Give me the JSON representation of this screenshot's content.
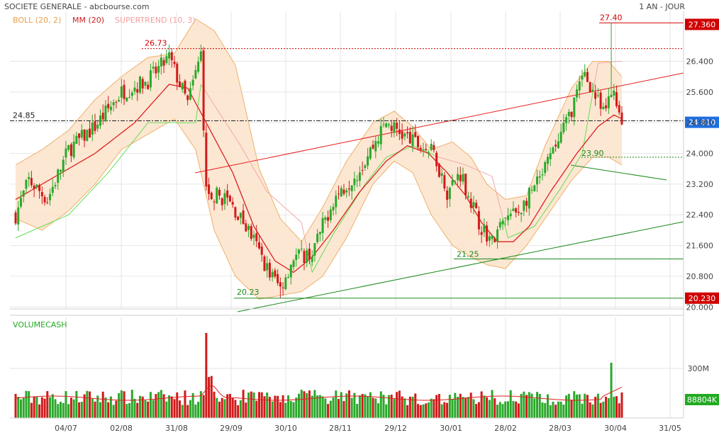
{
  "header": {
    "title": "SOCIETE GENERALE - abcbourse.com",
    "period": "1 AN - JOUR"
  },
  "legend": [
    {
      "label": "BOLL (20, 2)",
      "color": "#e8a04a"
    },
    {
      "label": "MM (20)",
      "color": "#cc2222"
    },
    {
      "label": "SUPERTREND (10, 3)",
      "color": "#f0a0a0"
    }
  ],
  "volume_label": "VOLUMECASH",
  "chart_data": {
    "type": "candlestick",
    "x_ticks": [
      "04/07",
      "02/08",
      "31/08",
      "29/09",
      "30/10",
      "28/11",
      "29/12",
      "30/01",
      "28/02",
      "28/03",
      "30/04",
      "31/05"
    ],
    "price_ticks": [
      "26.400",
      "25.600",
      "24.800",
      "24.000",
      "23.200",
      "22.400",
      "21.600",
      "20.800",
      "20.000"
    ],
    "price_range": [
      19.95,
      27.7
    ],
    "volume_ticks": [
      "300M"
    ],
    "price_badges": [
      {
        "value": "27.360",
        "price": 27.36,
        "color": "#d00000"
      },
      {
        "value": "24.810",
        "price": 24.81,
        "color": "#1f6fe0"
      },
      {
        "value": "20.230",
        "price": 20.23,
        "color": "#d00000"
      }
    ],
    "volume_badge": {
      "value": "88804K",
      "color": "#22aa22"
    },
    "annotations": [
      {
        "text": "27.40",
        "price": 27.4,
        "color": "#d00000"
      },
      {
        "text": "26.73",
        "price": 26.73,
        "color": "#d00000"
      },
      {
        "text": "24.85",
        "price": 24.85,
        "color": "#222"
      },
      {
        "text": "23.90",
        "price": 23.9,
        "color": "#1a8a1a"
      },
      {
        "text": "21.25",
        "price": 21.25,
        "color": "#1a8a1a"
      },
      {
        "text": "20.23",
        "price": 20.23,
        "color": "#1a8a1a"
      }
    ],
    "price_anchors": [
      [
        0,
        22.4
      ],
      [
        5,
        23.3
      ],
      [
        12,
        22.8
      ],
      [
        20,
        24.1
      ],
      [
        30,
        24.7
      ],
      [
        40,
        25.6
      ],
      [
        50,
        25.9
      ],
      [
        58,
        26.5
      ],
      [
        65,
        25.3
      ],
      [
        70,
        26.6
      ],
      [
        72,
        23.0
      ],
      [
        80,
        22.8
      ],
      [
        88,
        22.0
      ],
      [
        95,
        21.0
      ],
      [
        100,
        20.5
      ],
      [
        105,
        21.3
      ],
      [
        112,
        21.4
      ],
      [
        120,
        22.8
      ],
      [
        130,
        23.6
      ],
      [
        140,
        24.8
      ],
      [
        150,
        24.3
      ],
      [
        158,
        24.0
      ],
      [
        163,
        23.0
      ],
      [
        168,
        23.5
      ],
      [
        175,
        22.2
      ],
      [
        180,
        21.7
      ],
      [
        185,
        22.3
      ],
      [
        190,
        22.5
      ],
      [
        198,
        23.3
      ],
      [
        208,
        24.8
      ],
      [
        215,
        26.1
      ],
      [
        222,
        25.0
      ],
      [
        226,
        25.7
      ],
      [
        229,
        24.8
      ]
    ],
    "bollinger_anchors": [
      [
        0,
        23.7,
        22.3
      ],
      [
        10,
        24.1,
        22.0
      ],
      [
        20,
        24.6,
        22.5
      ],
      [
        30,
        25.4,
        23.2
      ],
      [
        40,
        26.0,
        24.1
      ],
      [
        50,
        26.5,
        24.5
      ],
      [
        60,
        26.6,
        24.9
      ],
      [
        68,
        27.5,
        24.1
      ],
      [
        75,
        27.2,
        22.0
      ],
      [
        83,
        26.3,
        20.8
      ],
      [
        92,
        23.6,
        20.2
      ],
      [
        100,
        22.3,
        20.3
      ],
      [
        108,
        21.7,
        20.4
      ],
      [
        116,
        22.6,
        20.8
      ],
      [
        125,
        23.8,
        21.8
      ],
      [
        135,
        24.8,
        23.2
      ],
      [
        143,
        25.1,
        23.8
      ],
      [
        150,
        24.7,
        23.5
      ],
      [
        157,
        24.1,
        22.4
      ],
      [
        165,
        24.3,
        21.6
      ],
      [
        172,
        23.9,
        21.3
      ],
      [
        178,
        23.2,
        21.1
      ],
      [
        185,
        22.8,
        21.0
      ],
      [
        193,
        22.9,
        21.6
      ],
      [
        200,
        24.2,
        22.3
      ],
      [
        210,
        25.7,
        23.3
      ],
      [
        218,
        26.4,
        23.9
      ],
      [
        224,
        26.4,
        23.9
      ],
      [
        229,
        26.0,
        23.7
      ]
    ],
    "ma_anchors": [
      [
        0,
        22.8
      ],
      [
        15,
        23.4
      ],
      [
        30,
        24.0
      ],
      [
        45,
        24.8
      ],
      [
        58,
        25.8
      ],
      [
        65,
        25.7
      ],
      [
        72,
        24.8
      ],
      [
        82,
        23.5
      ],
      [
        90,
        22.1
      ],
      [
        98,
        21.2
      ],
      [
        105,
        20.9
      ],
      [
        112,
        21.3
      ],
      [
        120,
        22.0
      ],
      [
        130,
        23.0
      ],
      [
        140,
        23.8
      ],
      [
        148,
        24.2
      ],
      [
        156,
        24.0
      ],
      [
        163,
        23.5
      ],
      [
        170,
        22.9
      ],
      [
        176,
        22.2
      ],
      [
        182,
        21.7
      ],
      [
        188,
        21.7
      ],
      [
        194,
        22.1
      ],
      [
        202,
        23.0
      ],
      [
        212,
        24.0
      ],
      [
        220,
        24.7
      ],
      [
        226,
        25.0
      ],
      [
        229,
        24.9
      ]
    ],
    "supertrend_anchors": [
      [
        0,
        21.8
      ],
      [
        20,
        22.4
      ],
      [
        35,
        23.5
      ],
      [
        50,
        24.8
      ],
      [
        58,
        24.8
      ],
      [
        68,
        24.8
      ],
      [
        70,
        25.8
      ],
      [
        85,
        24.2
      ],
      [
        95,
        23.0
      ],
      [
        108,
        22.2
      ],
      [
        112,
        20.9
      ],
      [
        120,
        21.9
      ],
      [
        132,
        23.2
      ],
      [
        140,
        23.9
      ],
      [
        150,
        24.2
      ],
      [
        160,
        23.9
      ],
      [
        170,
        23.7
      ],
      [
        180,
        23.4
      ],
      [
        186,
        21.8
      ],
      [
        196,
        22.1
      ],
      [
        206,
        23.1
      ],
      [
        214,
        24.0
      ],
      [
        220,
        26.35
      ],
      [
        228,
        26.4
      ]
    ]
  }
}
